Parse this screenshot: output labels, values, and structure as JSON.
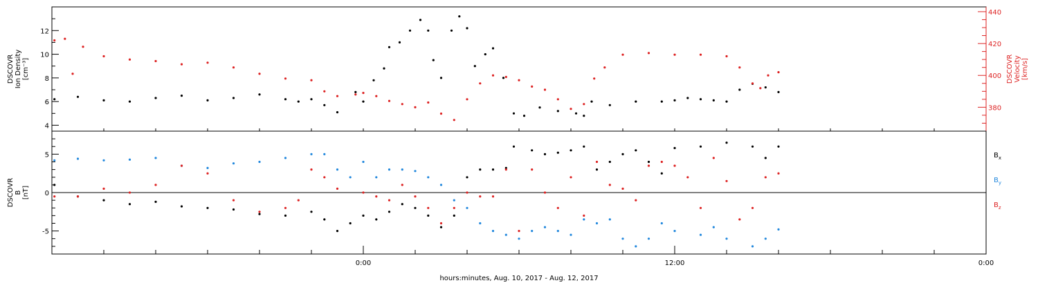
{
  "xaxis": {
    "label": "hours:minutes, Aug. 10, 2017 - Aug. 12, 2017",
    "range_hours": [
      -12,
      24
    ],
    "tick_labels": [
      {
        "hour": 0,
        "text": "0:00"
      },
      {
        "hour": 12,
        "text": "12:00"
      },
      {
        "hour": 24,
        "text": "0:00"
      }
    ],
    "minor_tick_step_hours": 2
  },
  "chart_data": [
    {
      "type": "scatter",
      "panel": "plasma",
      "ylabel": [
        "DSCOVR",
        "Ion Density",
        "[cm⁻³]"
      ],
      "ylim": [
        3.5,
        14
      ],
      "yticks": [
        "4",
        "6",
        "8",
        "10",
        "12"
      ],
      "y2label": [
        "DSCOVR",
        "Velocity",
        "[km/s]"
      ],
      "y2lim": [
        365,
        443
      ],
      "y2ticks": [
        "380",
        "400",
        "420",
        "440"
      ],
      "series": [
        {
          "key": "density",
          "color": "#000000",
          "axis": "left",
          "points": [
            [
              -11.9,
              6.2
            ],
            [
              -11.0,
              6.4
            ],
            [
              -10.0,
              6.1
            ],
            [
              -9.0,
              6.0
            ],
            [
              -8.0,
              6.3
            ],
            [
              -7.0,
              6.5
            ],
            [
              -6.0,
              6.1
            ],
            [
              -5.0,
              6.3
            ],
            [
              -4.0,
              6.6
            ],
            [
              -3.0,
              6.2
            ],
            [
              -2.5,
              6.0
            ],
            [
              -2.0,
              6.2
            ],
            [
              -1.5,
              5.7
            ],
            [
              -1.0,
              5.1
            ],
            [
              -0.3,
              6.8
            ],
            [
              0.0,
              6.0
            ],
            [
              0.4,
              7.8
            ],
            [
              0.8,
              8.8
            ],
            [
              1.0,
              10.6
            ],
            [
              1.4,
              11.0
            ],
            [
              1.8,
              12.0
            ],
            [
              2.2,
              12.9
            ],
            [
              2.5,
              12.0
            ],
            [
              2.7,
              9.5
            ],
            [
              3.0,
              8.0
            ],
            [
              3.4,
              12.0
            ],
            [
              3.7,
              13.2
            ],
            [
              4.0,
              12.2
            ],
            [
              4.3,
              9.0
            ],
            [
              4.7,
              10.0
            ],
            [
              5.0,
              10.5
            ],
            [
              5.4,
              8.0
            ],
            [
              5.8,
              5.0
            ],
            [
              6.2,
              4.8
            ],
            [
              6.8,
              5.5
            ],
            [
              7.5,
              5.2
            ],
            [
              8.2,
              5.0
            ],
            [
              8.5,
              4.8
            ],
            [
              8.8,
              6.0
            ],
            [
              9.5,
              5.7
            ],
            [
              10.5,
              6.0
            ],
            [
              11.5,
              6.0
            ],
            [
              12.0,
              6.1
            ],
            [
              12.5,
              6.3
            ],
            [
              13.0,
              6.2
            ],
            [
              13.5,
              6.1
            ],
            [
              14.0,
              6.0
            ],
            [
              14.5,
              7.0
            ],
            [
              15.0,
              7.5
            ],
            [
              15.5,
              7.2
            ],
            [
              16.0,
              6.8
            ]
          ]
        },
        {
          "key": "velocity",
          "color": "#dd2222",
          "axis": "right",
          "points": [
            [
              -11.9,
              422
            ],
            [
              -11.5,
              423
            ],
            [
              -11.2,
              401
            ],
            [
              -10.8,
              418
            ],
            [
              -10.0,
              412
            ],
            [
              -9.0,
              410
            ],
            [
              -8.0,
              409
            ],
            [
              -7.0,
              407
            ],
            [
              -6.0,
              408
            ],
            [
              -5.0,
              405
            ],
            [
              -4.0,
              401
            ],
            [
              -3.0,
              398
            ],
            [
              -2.0,
              397
            ],
            [
              -1.5,
              390
            ],
            [
              -1.0,
              387
            ],
            [
              -0.3,
              388
            ],
            [
              0.0,
              389
            ],
            [
              0.5,
              387
            ],
            [
              1.0,
              384
            ],
            [
              1.5,
              382
            ],
            [
              2.0,
              380
            ],
            [
              2.5,
              383
            ],
            [
              3.0,
              376
            ],
            [
              3.5,
              372
            ],
            [
              4.0,
              385
            ],
            [
              4.5,
              395
            ],
            [
              5.0,
              400
            ],
            [
              5.5,
              399
            ],
            [
              6.0,
              397
            ],
            [
              6.5,
              393
            ],
            [
              7.0,
              391
            ],
            [
              7.5,
              385
            ],
            [
              8.0,
              379
            ],
            [
              8.5,
              382
            ],
            [
              8.9,
              398
            ],
            [
              9.3,
              405
            ],
            [
              10.0,
              413
            ],
            [
              11.0,
              414
            ],
            [
              12.0,
              413
            ],
            [
              13.0,
              413
            ],
            [
              14.0,
              412
            ],
            [
              14.5,
              405
            ],
            [
              15.0,
              395
            ],
            [
              15.3,
              392
            ],
            [
              15.6,
              400
            ],
            [
              16.0,
              402
            ]
          ]
        }
      ]
    },
    {
      "type": "scatter",
      "panel": "magnetic-field",
      "ylabel": [
        "DSCOVR",
        "B",
        "[nT]"
      ],
      "ylim": [
        -8,
        8
      ],
      "yticks": [
        "-5",
        "0",
        "5"
      ],
      "zero_line": true,
      "legend": [
        {
          "text": "B",
          "sub": "x",
          "color": "#000000"
        },
        {
          "text": "B",
          "sub": "y",
          "color": "#2288dd"
        },
        {
          "text": "B",
          "sub": "z",
          "color": "#dd2222"
        }
      ],
      "series": [
        {
          "key": "bx",
          "color": "#000000",
          "points": [
            [
              -11.9,
              1.0
            ],
            [
              -11.0,
              -0.5
            ],
            [
              -10.0,
              -1.0
            ],
            [
              -9.0,
              -1.5
            ],
            [
              -8.0,
              -1.2
            ],
            [
              -7.0,
              -1.8
            ],
            [
              -6.0,
              -2.0
            ],
            [
              -5.0,
              -2.2
            ],
            [
              -4.0,
              -2.8
            ],
            [
              -3.0,
              -3.0
            ],
            [
              -2.0,
              -2.5
            ],
            [
              -1.5,
              -3.5
            ],
            [
              -1.0,
              -5.0
            ],
            [
              -0.5,
              -4.0
            ],
            [
              0.0,
              -3.0
            ],
            [
              0.5,
              -3.5
            ],
            [
              1.0,
              -2.5
            ],
            [
              1.5,
              -1.5
            ],
            [
              2.0,
              -2.0
            ],
            [
              2.5,
              -3.0
            ],
            [
              3.0,
              -4.5
            ],
            [
              3.5,
              -3.0
            ],
            [
              4.0,
              2.0
            ],
            [
              4.5,
              3.0
            ],
            [
              5.0,
              3.0
            ],
            [
              5.5,
              3.2
            ],
            [
              5.8,
              6.0
            ],
            [
              6.5,
              5.5
            ],
            [
              7.0,
              5.0
            ],
            [
              7.5,
              5.2
            ],
            [
              8.0,
              5.5
            ],
            [
              8.5,
              6.0
            ],
            [
              9.0,
              3.0
            ],
            [
              9.5,
              4.0
            ],
            [
              10.0,
              5.0
            ],
            [
              10.5,
              5.5
            ],
            [
              11.0,
              4.0
            ],
            [
              11.5,
              2.5
            ],
            [
              12.0,
              5.8
            ],
            [
              13.0,
              6.0
            ],
            [
              14.0,
              6.5
            ],
            [
              15.0,
              6.0
            ],
            [
              15.5,
              4.5
            ],
            [
              16.0,
              6.0
            ]
          ]
        },
        {
          "key": "by",
          "color": "#2288dd",
          "points": [
            [
              -11.9,
              4.2
            ],
            [
              -11.0,
              4.4
            ],
            [
              -10.0,
              4.2
            ],
            [
              -9.0,
              4.3
            ],
            [
              -8.0,
              4.5
            ],
            [
              -7.0,
              3.5
            ],
            [
              -6.0,
              3.2
            ],
            [
              -5.0,
              3.8
            ],
            [
              -4.0,
              4.0
            ],
            [
              -3.0,
              4.5
            ],
            [
              -2.0,
              5.0
            ],
            [
              -1.5,
              5.0
            ],
            [
              -1.0,
              3.0
            ],
            [
              -0.5,
              2.0
            ],
            [
              0.0,
              4.0
            ],
            [
              0.5,
              2.0
            ],
            [
              1.0,
              3.0
            ],
            [
              1.5,
              3.0
            ],
            [
              2.0,
              2.8
            ],
            [
              2.5,
              2.0
            ],
            [
              3.0,
              1.0
            ],
            [
              3.5,
              -1.0
            ],
            [
              4.0,
              -2.0
            ],
            [
              4.5,
              -4.0
            ],
            [
              5.0,
              -5.0
            ],
            [
              5.5,
              -5.5
            ],
            [
              6.0,
              -6.0
            ],
            [
              6.5,
              -5.0
            ],
            [
              7.0,
              -4.5
            ],
            [
              7.5,
              -5.0
            ],
            [
              8.0,
              -5.5
            ],
            [
              8.5,
              -3.5
            ],
            [
              9.0,
              -4.0
            ],
            [
              9.5,
              -3.5
            ],
            [
              10.0,
              -6.0
            ],
            [
              10.5,
              -7.0
            ],
            [
              11.0,
              -6.0
            ],
            [
              11.5,
              -4.0
            ],
            [
              12.0,
              -5.0
            ],
            [
              13.0,
              -5.5
            ],
            [
              13.5,
              -4.5
            ],
            [
              14.0,
              -6.0
            ],
            [
              15.0,
              -7.0
            ],
            [
              15.5,
              -6.0
            ],
            [
              16.0,
              -4.8
            ]
          ]
        },
        {
          "key": "bz",
          "color": "#dd2222",
          "points": [
            [
              -11.9,
              -0.5
            ],
            [
              -11.0,
              -0.5
            ],
            [
              -10.0,
              0.5
            ],
            [
              -9.0,
              0.0
            ],
            [
              -8.0,
              1.0
            ],
            [
              -7.0,
              3.5
            ],
            [
              -6.0,
              2.5
            ],
            [
              -5.0,
              -1.0
            ],
            [
              -4.0,
              -2.5
            ],
            [
              -3.0,
              -2.0
            ],
            [
              -2.5,
              -1.0
            ],
            [
              -2.0,
              3.0
            ],
            [
              -1.5,
              2.0
            ],
            [
              -1.0,
              0.5
            ],
            [
              0.0,
              0.0
            ],
            [
              0.5,
              -0.5
            ],
            [
              1.0,
              -1.0
            ],
            [
              1.5,
              1.0
            ],
            [
              2.0,
              -0.5
            ],
            [
              2.5,
              -2.0
            ],
            [
              3.0,
              -4.0
            ],
            [
              3.5,
              -2.0
            ],
            [
              4.0,
              0.0
            ],
            [
              4.5,
              -0.5
            ],
            [
              5.0,
              -0.5
            ],
            [
              5.5,
              3.0
            ],
            [
              6.0,
              -5.0
            ],
            [
              6.5,
              3.0
            ],
            [
              7.0,
              0.0
            ],
            [
              7.5,
              -2.0
            ],
            [
              8.0,
              2.0
            ],
            [
              8.5,
              -3.0
            ],
            [
              9.0,
              4.0
            ],
            [
              9.5,
              1.0
            ],
            [
              10.0,
              0.5
            ],
            [
              10.5,
              -1.0
            ],
            [
              11.0,
              3.5
            ],
            [
              11.5,
              4.0
            ],
            [
              12.0,
              3.5
            ],
            [
              12.5,
              2.0
            ],
            [
              13.0,
              -2.0
            ],
            [
              13.5,
              4.5
            ],
            [
              14.0,
              1.5
            ],
            [
              14.5,
              -3.5
            ],
            [
              15.0,
              -2.0
            ],
            [
              15.5,
              2.0
            ],
            [
              16.0,
              2.5
            ]
          ]
        }
      ]
    }
  ]
}
